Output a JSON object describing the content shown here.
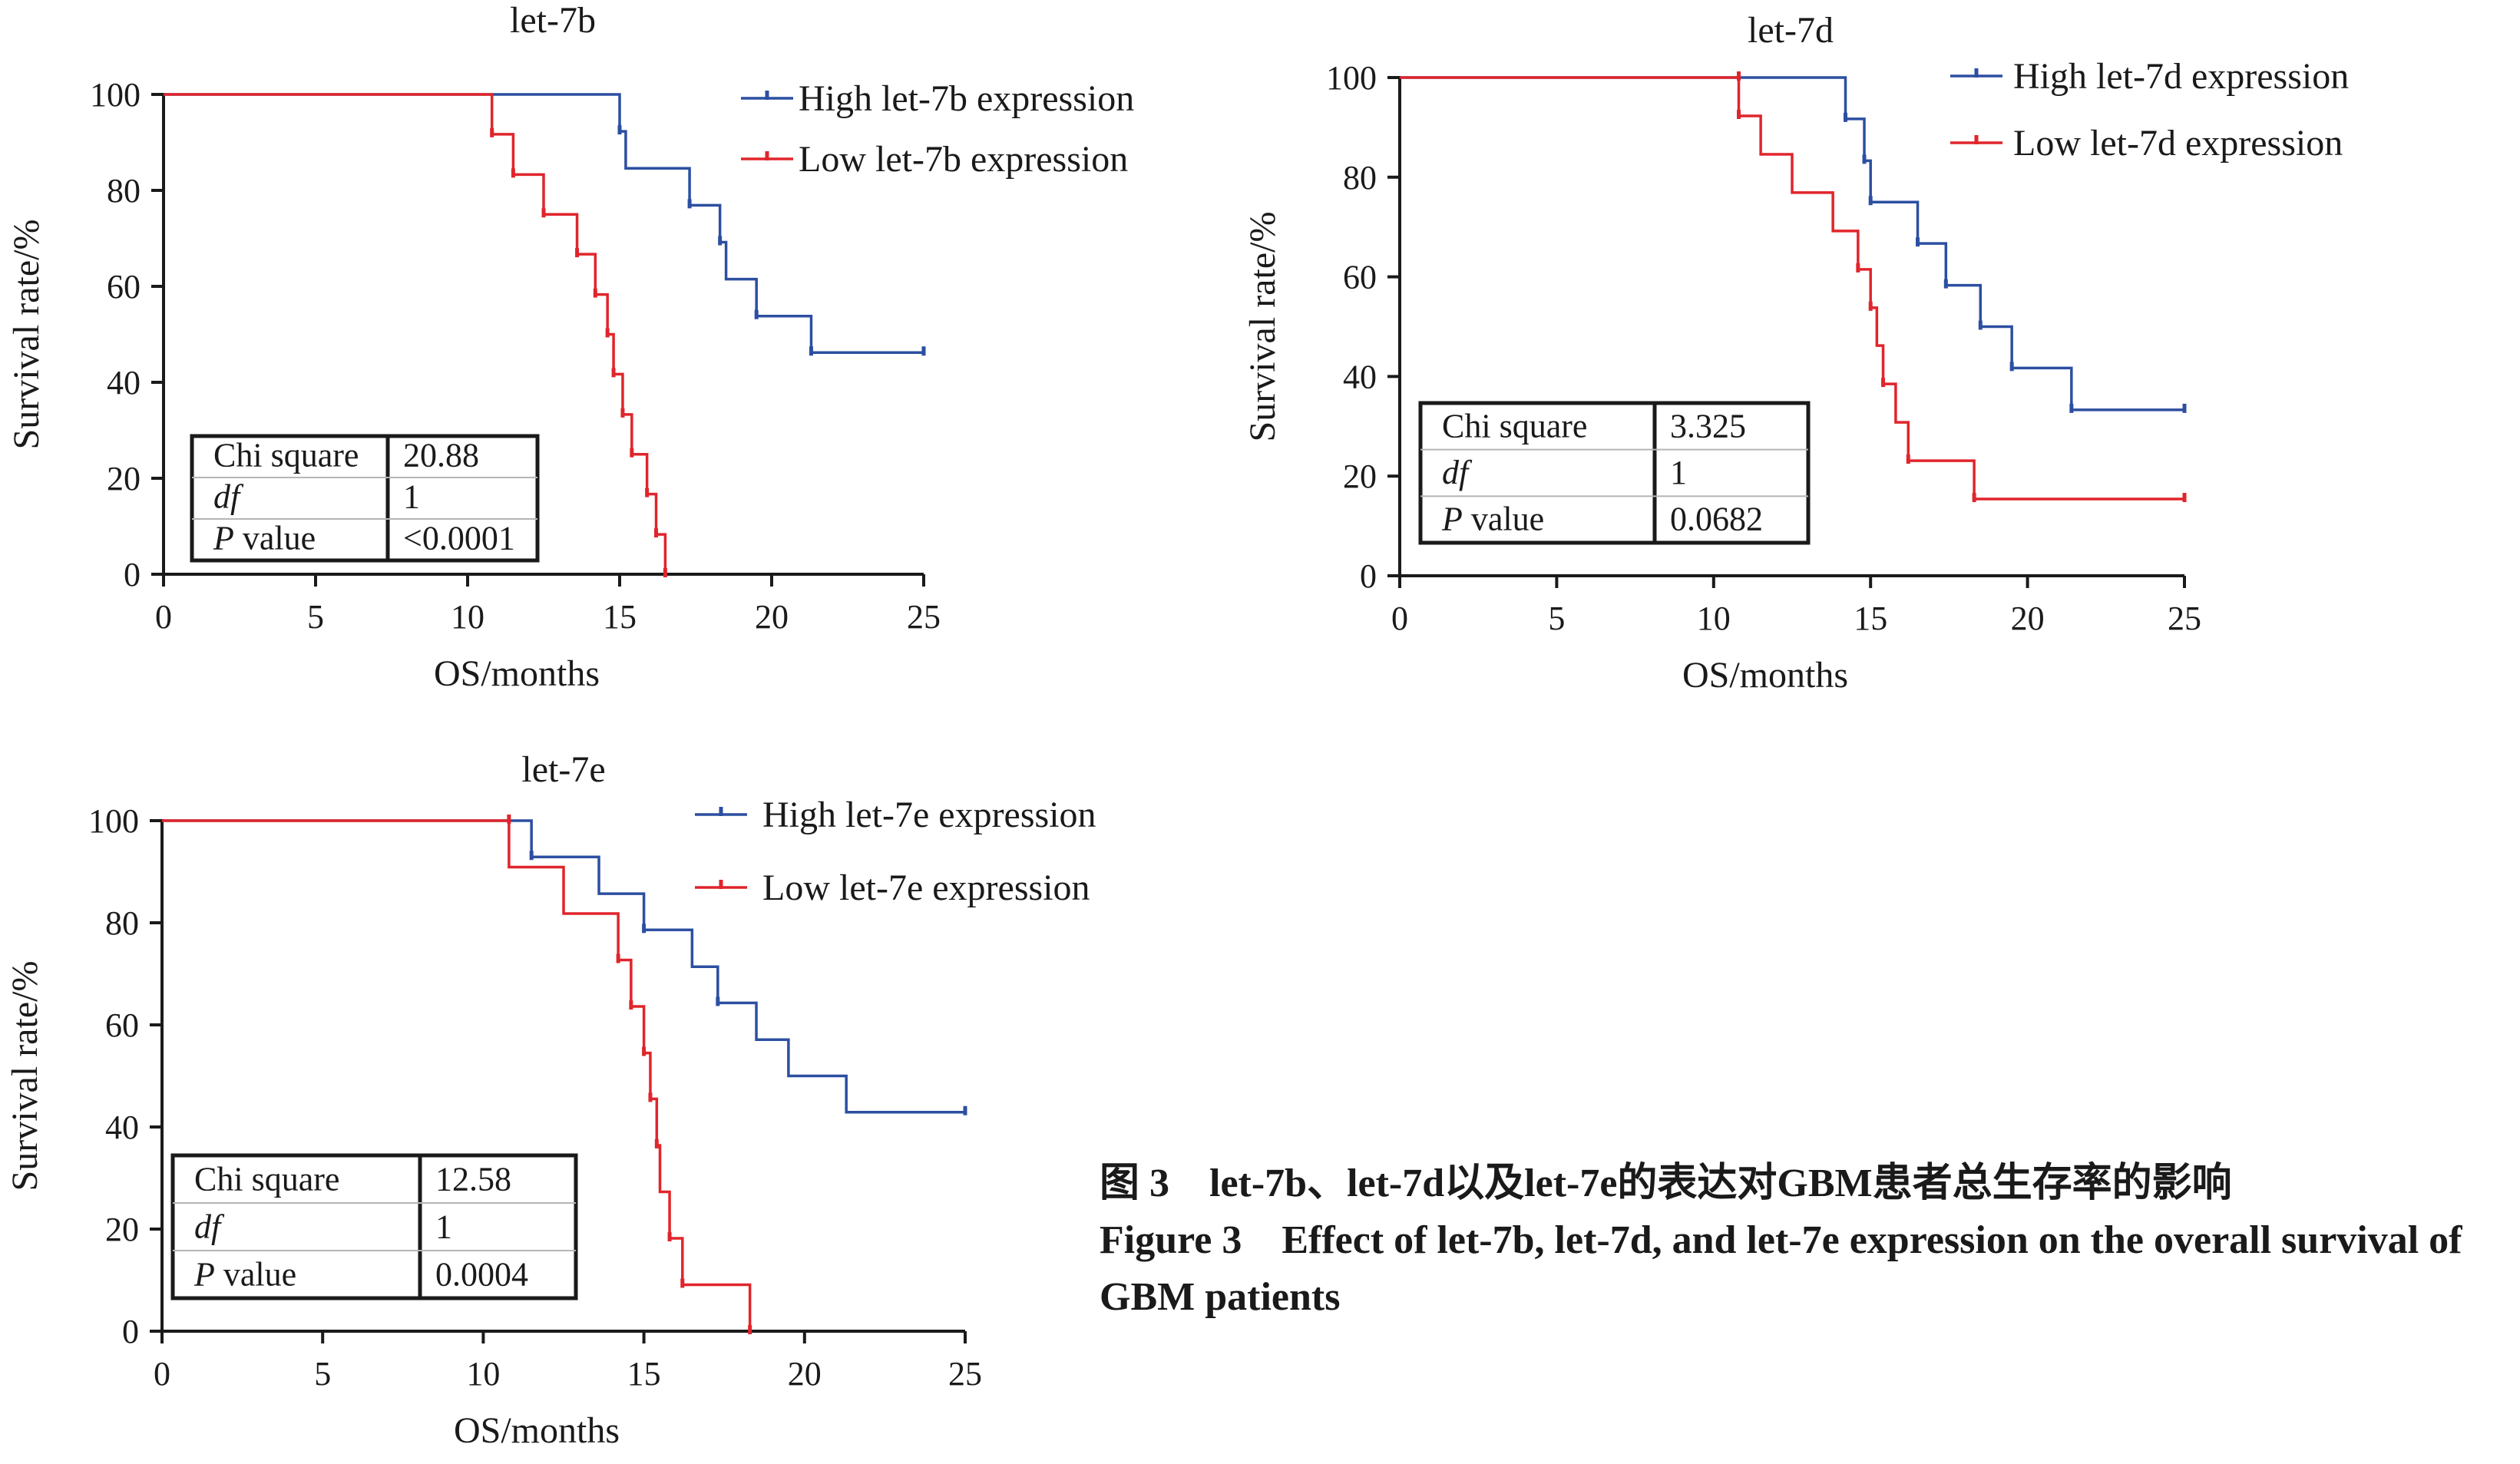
{
  "colors": {
    "high": "#2c4fa1",
    "low": "#e0252b",
    "axis": "#1a1a1a",
    "table_line": "#b5b5b5"
  },
  "chart_data": [
    {
      "type": "line",
      "title": "let-7b",
      "xlabel": "OS/months",
      "ylabel": "Survival rate/%",
      "xlim": [
        0,
        25
      ],
      "ylim": [
        0,
        100
      ],
      "xticks": [
        0,
        5,
        10,
        15,
        20,
        25
      ],
      "yticks": [
        0,
        20,
        40,
        60,
        80,
        100
      ],
      "legend_position": "top-right",
      "series": [
        {
          "name": "High let-7b expression",
          "color_key": "high",
          "steps": [
            [
              0,
              100
            ],
            [
              15.0,
              92.3
            ],
            [
              15.2,
              84.6
            ],
            [
              17.3,
              76.9
            ],
            [
              18.3,
              69.2
            ],
            [
              18.5,
              61.5
            ],
            [
              19.5,
              53.8
            ],
            [
              21.3,
              46.2
            ]
          ],
          "end_x": 25,
          "censored": [
            [
              15.0,
              92.3
            ],
            [
              17.3,
              76.9
            ],
            [
              18.3,
              69.2
            ],
            [
              19.5,
              53.8
            ],
            [
              21.3,
              46.2
            ],
            [
              25.0,
              46.2
            ]
          ]
        },
        {
          "name": "Low let-7b expression",
          "color_key": "low",
          "steps": [
            [
              0,
              100
            ],
            [
              10.8,
              91.7
            ],
            [
              11.5,
              83.3
            ],
            [
              12.5,
              75.0
            ],
            [
              13.6,
              66.7
            ],
            [
              14.2,
              58.3
            ],
            [
              14.6,
              50.0
            ],
            [
              14.8,
              41.7
            ],
            [
              15.1,
              33.3
            ],
            [
              15.4,
              25.0
            ],
            [
              15.9,
              16.7
            ],
            [
              16.2,
              8.3
            ],
            [
              16.5,
              0
            ]
          ],
          "end_x": 16.5,
          "censored": [
            [
              10.8,
              91.7
            ],
            [
              11.5,
              83.3
            ],
            [
              12.5,
              75.0
            ],
            [
              13.6,
              66.7
            ],
            [
              14.2,
              58.3
            ],
            [
              14.6,
              50.0
            ],
            [
              14.8,
              41.7
            ],
            [
              15.1,
              33.3
            ],
            [
              15.4,
              25.0
            ],
            [
              15.9,
              16.7
            ],
            [
              16.2,
              8.3
            ],
            [
              16.5,
              0
            ]
          ]
        }
      ],
      "stats_table": [
        {
          "label": "Chi square",
          "label_style": "normal",
          "value": "20.88"
        },
        {
          "label": "df",
          "label_style": "italic",
          "value": "1"
        },
        {
          "label_italic": "P",
          "label": " value",
          "label_style": "mixed",
          "value": "<0.0001"
        }
      ]
    },
    {
      "type": "line",
      "title": "let-7d",
      "xlabel": "OS/months",
      "ylabel": "Survival rate/%",
      "xlim": [
        0,
        25
      ],
      "ylim": [
        0,
        100
      ],
      "xticks": [
        0,
        5,
        10,
        15,
        20,
        25
      ],
      "yticks": [
        0,
        20,
        40,
        60,
        80,
        100
      ],
      "legend_position": "top-right",
      "series": [
        {
          "name": "High let-7d expression",
          "color_key": "high",
          "steps": [
            [
              0,
              100
            ],
            [
              14.2,
              91.7
            ],
            [
              14.8,
              83.3
            ],
            [
              15.0,
              75.0
            ],
            [
              16.5,
              66.7
            ],
            [
              17.4,
              58.3
            ],
            [
              18.5,
              50.0
            ],
            [
              19.5,
              41.7
            ],
            [
              21.4,
              33.3
            ]
          ],
          "end_x": 25,
          "censored": [
            [
              14.2,
              91.7
            ],
            [
              14.8,
              83.3
            ],
            [
              15.0,
              75.0
            ],
            [
              16.5,
              66.7
            ],
            [
              17.4,
              58.3
            ],
            [
              18.5,
              50.0
            ],
            [
              19.5,
              41.7
            ],
            [
              21.4,
              33.3
            ],
            [
              25.0,
              33.3
            ]
          ]
        },
        {
          "name": "Low let-7d expression",
          "color_key": "low",
          "steps": [
            [
              0,
              100
            ],
            [
              10.8,
              92.3
            ],
            [
              11.5,
              84.6
            ],
            [
              12.5,
              76.9
            ],
            [
              13.8,
              69.2
            ],
            [
              14.6,
              61.5
            ],
            [
              15.0,
              53.8
            ],
            [
              15.2,
              46.2
            ],
            [
              15.4,
              38.5
            ],
            [
              15.8,
              30.8
            ],
            [
              16.2,
              23.1
            ],
            [
              18.3,
              15.4
            ]
          ],
          "end_x": 25,
          "censored": [
            [
              10.8,
              100
            ],
            [
              10.8,
              92.3
            ],
            [
              14.6,
              61.5
            ],
            [
              15.0,
              53.8
            ],
            [
              15.4,
              38.5
            ],
            [
              16.2,
              23.1
            ],
            [
              18.3,
              15.4
            ],
            [
              25.0,
              15.4
            ]
          ]
        }
      ],
      "stats_table": [
        {
          "label": "Chi square",
          "label_style": "normal",
          "value": "3.325"
        },
        {
          "label": "df",
          "label_style": "italic",
          "value": "1"
        },
        {
          "label_italic": "P",
          "label": " value",
          "label_style": "mixed",
          "value": "0.0682"
        }
      ]
    },
    {
      "type": "line",
      "title": "let-7e",
      "xlabel": "OS/months",
      "ylabel": "Survival rate/%",
      "xlim": [
        0,
        25
      ],
      "ylim": [
        0,
        100
      ],
      "xticks": [
        0,
        5,
        10,
        15,
        20,
        25
      ],
      "yticks": [
        0,
        20,
        40,
        60,
        80,
        100
      ],
      "legend_position": "top-right",
      "series": [
        {
          "name": "High let-7e expression",
          "color_key": "high",
          "steps": [
            [
              0,
              100
            ],
            [
              11.5,
              92.9
            ],
            [
              13.6,
              85.7
            ],
            [
              15.0,
              78.6
            ],
            [
              16.5,
              71.4
            ],
            [
              17.3,
              64.3
            ],
            [
              18.5,
              57.1
            ],
            [
              19.5,
              50.0
            ],
            [
              21.3,
              42.9
            ]
          ],
          "end_x": 25,
          "censored": [
            [
              11.5,
              92.9
            ],
            [
              15.0,
              78.6
            ],
            [
              17.3,
              64.3
            ],
            [
              25.0,
              42.9
            ]
          ]
        },
        {
          "name": "Low let-7e expression",
          "color_key": "low",
          "steps": [
            [
              0,
              100
            ],
            [
              10.8,
              90.9
            ],
            [
              12.5,
              81.8
            ],
            [
              14.2,
              72.7
            ],
            [
              14.6,
              63.6
            ],
            [
              15.0,
              54.5
            ],
            [
              15.2,
              45.5
            ],
            [
              15.4,
              36.4
            ],
            [
              15.5,
              27.3
            ],
            [
              15.8,
              18.2
            ],
            [
              16.2,
              9.1
            ],
            [
              18.3,
              0
            ]
          ],
          "end_x": 18.3,
          "censored": [
            [
              10.8,
              100
            ],
            [
              14.2,
              72.7
            ],
            [
              14.6,
              63.6
            ],
            [
              15.0,
              54.5
            ],
            [
              15.2,
              45.5
            ],
            [
              15.4,
              36.4
            ],
            [
              15.8,
              18.2
            ],
            [
              16.2,
              9.1
            ],
            [
              18.3,
              0
            ]
          ]
        }
      ],
      "stats_table": [
        {
          "label": "Chi square",
          "label_style": "normal",
          "value": "12.58"
        },
        {
          "label": "df",
          "label_style": "italic",
          "value": "1"
        },
        {
          "label_italic": "P",
          "label": " value",
          "label_style": "mixed",
          "value": "0.0004"
        }
      ]
    }
  ],
  "caption": {
    "zh": "图 3　let-7b、let-7d以及let-7e的表达对GBM患者总生存率的影响",
    "en": "Figure 3　Effect of let-7b, let-7d, and let-7e expression on the overall survival of GBM patients"
  }
}
